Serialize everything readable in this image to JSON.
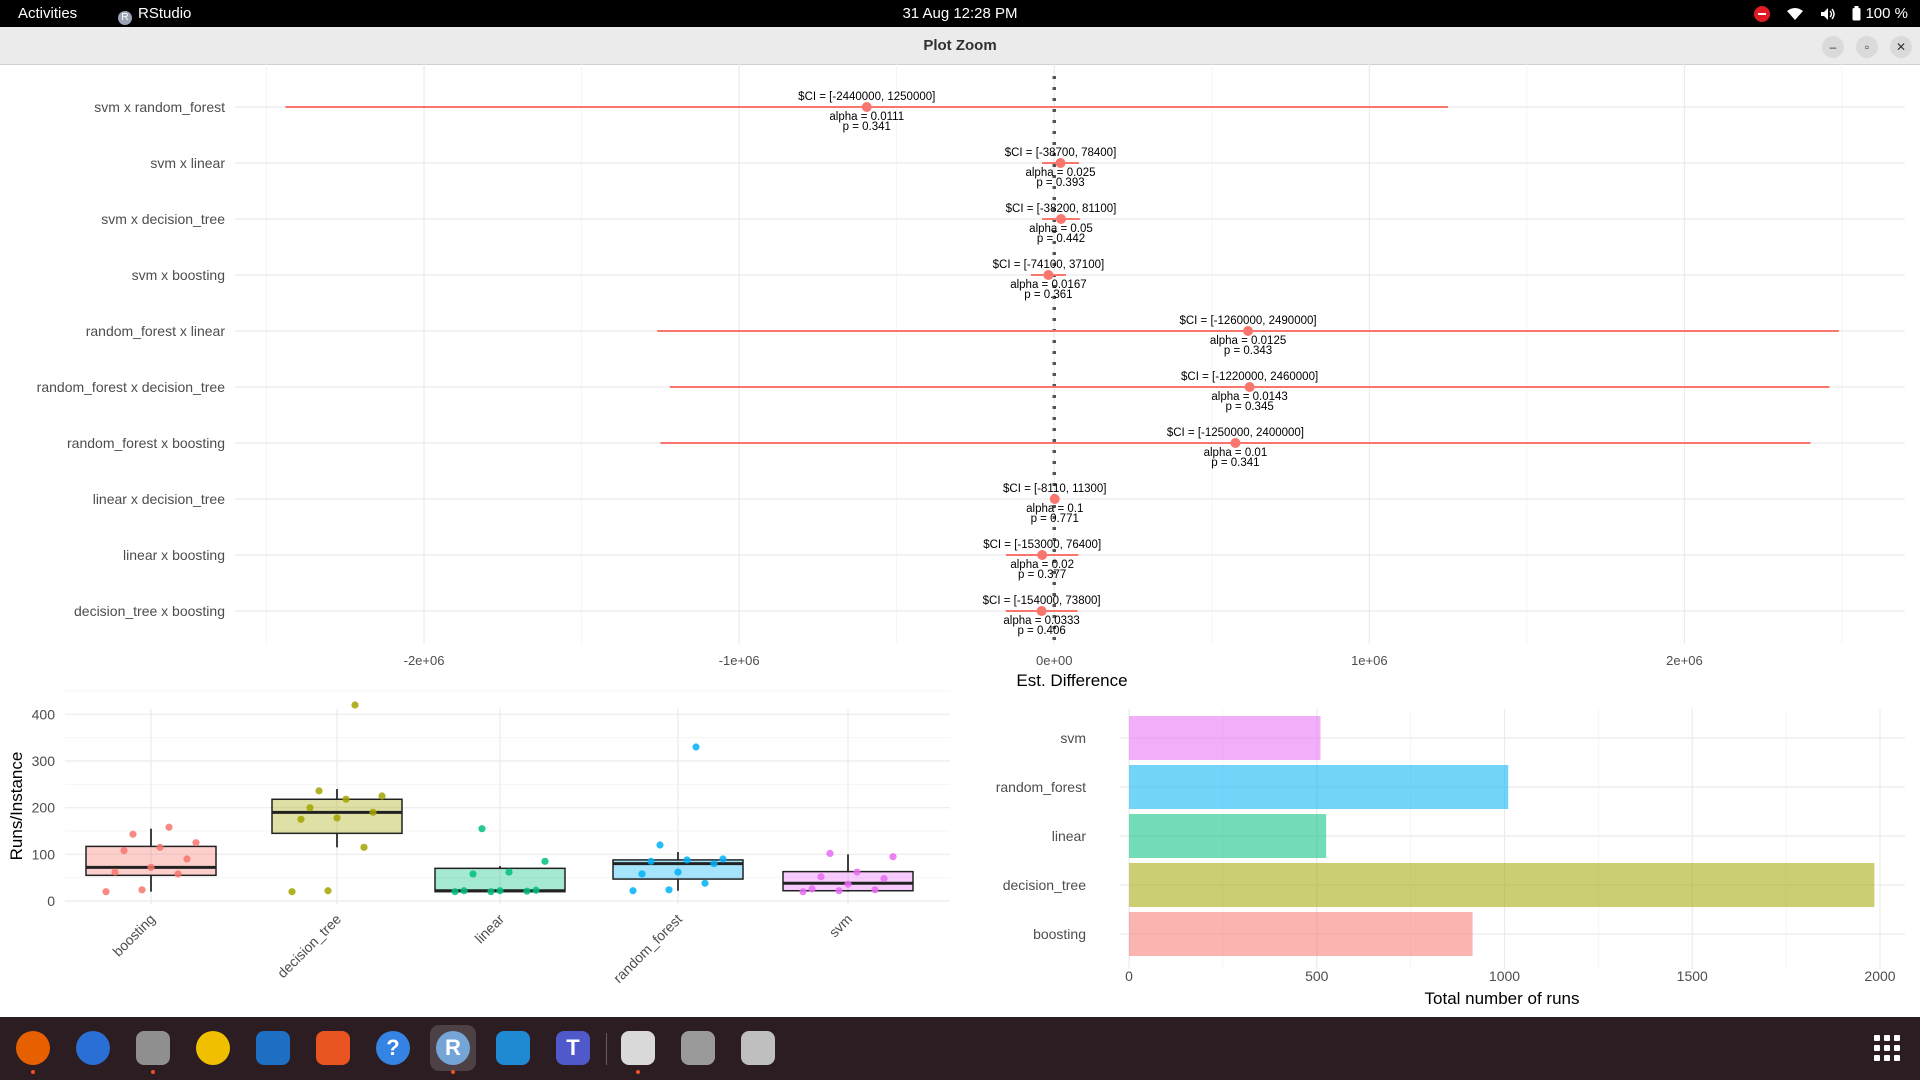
{
  "topbar": {
    "activities": "Activities",
    "app_name": "RStudio",
    "app_icon_letter": "R",
    "clock": "31 Aug  12:28 PM",
    "battery": "100 %",
    "icons": [
      "do-not-disturb-icon",
      "wifi-icon",
      "volume-icon",
      "battery-icon"
    ]
  },
  "window": {
    "title": "Plot Zoom",
    "controls": [
      "minimize-icon",
      "maximize-icon",
      "close-icon"
    ]
  },
  "dock": {
    "items": [
      {
        "name": "firefox",
        "icon": "firefox-icon",
        "color": "#e66000",
        "running": true
      },
      {
        "name": "thunderbird",
        "icon": "thunderbird-icon",
        "color": "#2a6fd6",
        "running": false
      },
      {
        "name": "files",
        "icon": "files-icon",
        "color": "#8f8f8f",
        "running": true
      },
      {
        "name": "rhythmbox",
        "icon": "rhythmbox-icon",
        "color": "#f0c000",
        "running": false
      },
      {
        "name": "libreoffice-writer",
        "icon": "writer-icon",
        "color": "#1e6fc4",
        "running": false
      },
      {
        "name": "app-center",
        "icon": "app-center-icon",
        "color": "#e95420",
        "running": false
      },
      {
        "name": "help",
        "icon": "help-icon",
        "color": "#3584e4",
        "running": false
      },
      {
        "name": "rstudio",
        "icon": "rstudio-icon",
        "color": "#75a4d6",
        "running": true,
        "active": true,
        "letter": "R"
      },
      {
        "name": "vscode",
        "icon": "vscode-icon",
        "color": "#1f8ad2",
        "running": false
      },
      {
        "name": "teams",
        "icon": "teams-icon",
        "color": "#5059c9",
        "running": false,
        "letter": "T"
      },
      {
        "name": "text-editor",
        "icon": "text-editor-icon",
        "color": "#d9d9d9",
        "running": true
      },
      {
        "name": "drive",
        "icon": "drive-icon",
        "color": "#9a9a9a",
        "running": false
      },
      {
        "name": "trash",
        "icon": "trash-icon",
        "color": "#bfbfbf",
        "running": false
      }
    ],
    "show_apps_icon": "apps-grid-icon"
  },
  "chart_data": [
    {
      "type": "scatter",
      "subtype": "forest-plot",
      "title": "",
      "xlabel": "Est. Difference",
      "ylabel": "",
      "x_ticks": [
        -2000000,
        -1000000,
        0,
        1000000,
        2000000
      ],
      "x_tick_labels": [
        "-2e+06",
        "-1e+06",
        "0e+00",
        "1e+06",
        "2e+06"
      ],
      "xlim": [
        -2600000,
        2700000
      ],
      "reference_line": 0,
      "point_color": "#f8766d",
      "grid": true,
      "rows": [
        {
          "label": "svm x random_forest",
          "est": -595000,
          "ci_low": -2440000,
          "ci_high": 1250000,
          "ci_text": "$CI = [-2440000, 1250000]",
          "alpha_text": "alpha = 0.0111",
          "p_text": "p = 0.341"
        },
        {
          "label": "svm x linear",
          "est": 19850,
          "ci_low": -38700,
          "ci_high": 78400,
          "ci_text": "$CI = [-38700, 78400]",
          "alpha_text": "alpha = 0.025",
          "p_text": "p = 0.393"
        },
        {
          "label": "svm x decision_tree",
          "est": 21450,
          "ci_low": -38200,
          "ci_high": 81100,
          "ci_text": "$CI = [-38200, 81100]",
          "alpha_text": "alpha = 0.05",
          "p_text": "p = 0.442"
        },
        {
          "label": "svm x boosting",
          "est": -18500,
          "ci_low": -74100,
          "ci_high": 37100,
          "ci_text": "$CI = [-74100, 37100]",
          "alpha_text": "alpha = 0.0167",
          "p_text": "p = 0.361"
        },
        {
          "label": "random_forest x linear",
          "est": 615000,
          "ci_low": -1260000,
          "ci_high": 2490000,
          "ci_text": "$CI = [-1260000, 2490000]",
          "alpha_text": "alpha = 0.0125",
          "p_text": "p = 0.343"
        },
        {
          "label": "random_forest x decision_tree",
          "est": 620000,
          "ci_low": -1220000,
          "ci_high": 2460000,
          "ci_text": "$CI = [-1220000, 2460000]",
          "alpha_text": "alpha = 0.0143",
          "p_text": "p = 0.345"
        },
        {
          "label": "random_forest x boosting",
          "est": 575000,
          "ci_low": -1250000,
          "ci_high": 2400000,
          "ci_text": "$CI = [-1250000, 2400000]",
          "alpha_text": "alpha = 0.01",
          "p_text": "p = 0.341"
        },
        {
          "label": "linear x decision_tree",
          "est": 1595,
          "ci_low": -8110,
          "ci_high": 11300,
          "ci_text": "$CI = [-8110, 11300]",
          "alpha_text": "alpha = 0.1",
          "p_text": "p = 0.771"
        },
        {
          "label": "linear x boosting",
          "est": -38300,
          "ci_low": -153000,
          "ci_high": 76400,
          "ci_text": "$CI = [-153000, 76400]",
          "alpha_text": "alpha = 0.02",
          "p_text": "p = 0.377"
        },
        {
          "label": "decision_tree x boosting",
          "est": -40100,
          "ci_low": -154000,
          "ci_high": 73800,
          "ci_text": "$CI = [-154000, 73800]",
          "alpha_text": "alpha = 0.0333",
          "p_text": "p = 0.406"
        }
      ]
    },
    {
      "type": "box",
      "title": "",
      "xlabel": "",
      "ylabel": "Runs/Instance",
      "ylim": [
        0,
        420
      ],
      "y_ticks": [
        0,
        100,
        200,
        300,
        400
      ],
      "grid": true,
      "categories": [
        {
          "name": "boosting",
          "color": "#f8766d",
          "min": 20,
          "q1": 55,
          "median": 72,
          "q3": 117,
          "max": 155,
          "points": [
            20,
            24,
            58,
            62,
            72,
            90,
            108,
            115,
            125,
            143,
            158
          ]
        },
        {
          "name": "decision_tree",
          "color": "#a3a500",
          "min": 115,
          "q1": 145,
          "median": 190,
          "q3": 218,
          "max": 240,
          "points": [
            20,
            22,
            115,
            175,
            178,
            190,
            200,
            218,
            225,
            236,
            420
          ]
        },
        {
          "name": "linear",
          "color": "#00bf7d",
          "min": 20,
          "q1": 20,
          "median": 22,
          "q3": 70,
          "max": 75,
          "points": [
            20,
            20,
            21,
            22,
            22,
            23,
            58,
            62,
            85,
            155
          ]
        },
        {
          "name": "random_forest",
          "color": "#00b0f6",
          "min": 22,
          "q1": 47,
          "median": 80,
          "q3": 88,
          "max": 105,
          "points": [
            22,
            24,
            38,
            58,
            62,
            80,
            85,
            88,
            90,
            120,
            330
          ]
        },
        {
          "name": "svm",
          "color": "#e76bf3",
          "min": 20,
          "q1": 22,
          "median": 38,
          "q3": 63,
          "max": 100,
          "points": [
            20,
            22,
            24,
            26,
            36,
            48,
            52,
            62,
            95,
            102
          ]
        }
      ]
    },
    {
      "type": "bar",
      "orientation": "horizontal",
      "title": "",
      "xlabel": "Total number of runs",
      "ylabel": "",
      "xlim": [
        0,
        2050
      ],
      "x_ticks": [
        0,
        500,
        1000,
        1500,
        2000
      ],
      "categories": [
        "svm",
        "random_forest",
        "linear",
        "decision_tree",
        "boosting"
      ],
      "values": [
        510,
        1010,
        525,
        1985,
        915
      ],
      "colors": [
        "#e76bf3",
        "#00b0f6",
        "#00bf7d",
        "#a3a500",
        "#f8766d"
      ],
      "grid": true
    }
  ]
}
